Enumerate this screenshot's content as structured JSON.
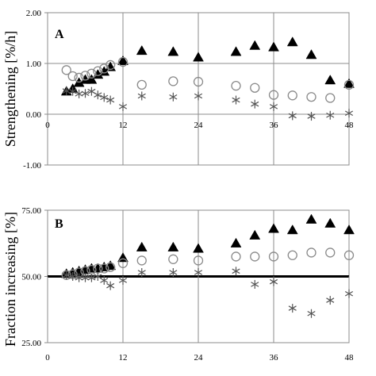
{
  "chart_data": [
    {
      "type": "scatter",
      "panel_label": "A",
      "ylabel": "Strengthening [%/h]",
      "xlabel": "",
      "xlim": [
        0,
        48
      ],
      "ylim": [
        -1.0,
        2.0
      ],
      "x_ticks": [
        0,
        12,
        24,
        36,
        48
      ],
      "x_tick_labels": [
        "0",
        "12",
        "24",
        "36",
        "48"
      ],
      "y_ticks": [
        -1.0,
        0.0,
        1.0,
        2.0
      ],
      "y_tick_labels": [
        "-1.00",
        "0.00",
        "1.00",
        "2.00"
      ],
      "baseline": 0.0,
      "baseline_bold": false,
      "grid": "vertical lines at 12, 24, 36; horizontal line at 1.00",
      "series": [
        {
          "marker": "triangle",
          "x": [
            3,
            4,
            5,
            6,
            7,
            8,
            9,
            10,
            12,
            15,
            20,
            24,
            30,
            33,
            36,
            39,
            42,
            45,
            48
          ],
          "y": [
            0.45,
            0.5,
            0.62,
            0.68,
            0.68,
            0.78,
            0.84,
            0.93,
            1.05,
            1.25,
            1.23,
            1.12,
            1.23,
            1.35,
            1.32,
            1.42,
            1.17,
            0.67,
            0.6
          ]
        },
        {
          "marker": "circle",
          "x": [
            3,
            4,
            5,
            6,
            7,
            8,
            9,
            10,
            12,
            15,
            20,
            24,
            30,
            33,
            36,
            39,
            42,
            45,
            48
          ],
          "y": [
            0.87,
            0.75,
            0.72,
            0.76,
            0.8,
            0.85,
            0.9,
            0.97,
            1.03,
            0.58,
            0.65,
            0.64,
            0.56,
            0.52,
            0.38,
            0.37,
            0.34,
            0.32,
            0.58
          ]
        },
        {
          "marker": "asterisk",
          "x": [
            3,
            4,
            5,
            6,
            7,
            8,
            9,
            10,
            12,
            15,
            20,
            24,
            30,
            33,
            36,
            39,
            42,
            45,
            48
          ],
          "y": [
            0.46,
            0.45,
            0.4,
            0.41,
            0.45,
            0.38,
            0.33,
            0.28,
            0.15,
            0.36,
            0.34,
            0.36,
            0.28,
            0.2,
            0.15,
            -0.03,
            -0.04,
            -0.02,
            0.02
          ]
        }
      ]
    },
    {
      "type": "scatter",
      "panel_label": "B",
      "ylabel": "Fraction increasing [%]",
      "xlabel": "",
      "xlim": [
        0,
        48
      ],
      "ylim": [
        25.0,
        75.0
      ],
      "x_ticks": [
        0,
        12,
        24,
        36,
        48
      ],
      "x_tick_labels": [
        "0",
        "12",
        "24",
        "36",
        "48"
      ],
      "y_ticks": [
        25.0,
        50.0,
        75.0
      ],
      "y_tick_labels": [
        "25.00",
        "50.00",
        "75.00"
      ],
      "baseline": 50.0,
      "baseline_bold": true,
      "grid": "vertical lines at 12, 24, 36",
      "series": [
        {
          "marker": "triangle",
          "x": [
            3,
            4,
            5,
            6,
            7,
            8,
            9,
            10,
            12,
            15,
            20,
            24,
            30,
            33,
            36,
            39,
            42,
            45,
            48
          ],
          "y": [
            51.0,
            51.5,
            52.0,
            52.5,
            53.0,
            53.0,
            53.5,
            54.0,
            57.0,
            61.0,
            61.0,
            60.5,
            62.5,
            65.5,
            68.0,
            67.5,
            71.5,
            70.0,
            67.5
          ]
        },
        {
          "marker": "circle",
          "x": [
            3,
            4,
            5,
            6,
            7,
            8,
            9,
            10,
            12,
            15,
            20,
            24,
            30,
            33,
            36,
            39,
            42,
            45,
            48
          ],
          "y": [
            50.5,
            50.8,
            51.5,
            52.0,
            52.5,
            53.0,
            53.0,
            53.5,
            55.0,
            56.0,
            56.5,
            56.0,
            57.5,
            57.5,
            57.5,
            58.0,
            59.0,
            59.0,
            58.0
          ]
        },
        {
          "marker": "asterisk",
          "x": [
            3,
            4,
            5,
            6,
            7,
            8,
            9,
            10,
            12,
            15,
            20,
            24,
            30,
            33,
            36,
            39,
            42,
            45,
            48
          ],
          "y": [
            50.5,
            50.0,
            49.5,
            49.5,
            49.5,
            50.0,
            48.5,
            46.5,
            48.5,
            51.5,
            51.5,
            51.5,
            52.0,
            47.0,
            48.0,
            38.0,
            36.0,
            41.0,
            43.5
          ]
        }
      ]
    }
  ]
}
